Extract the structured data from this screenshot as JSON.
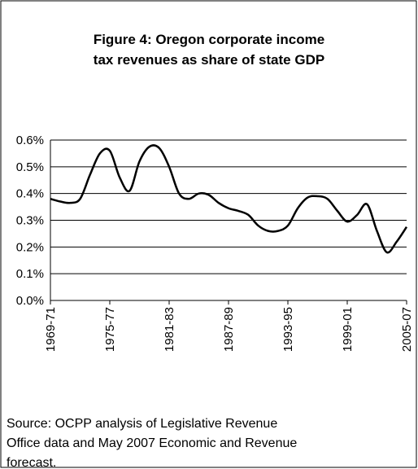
{
  "chart_data": {
    "type": "line",
    "title": [
      "Figure 4: Oregon corporate income",
      "tax revenues as share of state GDP"
    ],
    "categories": [
      "1969-71",
      null,
      null,
      null,
      null,
      null,
      "1975-77",
      null,
      null,
      null,
      null,
      null,
      "1981-83",
      null,
      null,
      null,
      null,
      null,
      "1987-89",
      null,
      null,
      null,
      null,
      null,
      "1993-95",
      null,
      null,
      null,
      null,
      null,
      "1999-01",
      null,
      null,
      null,
      null,
      null,
      "2005-07"
    ],
    "series": [
      {
        "name": "Corporate income tax revenues as share of state GDP",
        "color": "#000000",
        "values": [
          0.38,
          0.37,
          0.365,
          0.38,
          0.47,
          0.55,
          0.56,
          0.46,
          0.41,
          0.52,
          0.575,
          0.57,
          0.5,
          0.4,
          0.38,
          0.4,
          0.395,
          0.365,
          0.345,
          0.335,
          0.32,
          0.28,
          0.26,
          0.26,
          0.28,
          0.345,
          0.385,
          0.39,
          0.38,
          0.335,
          0.295,
          0.32,
          0.36,
          0.26,
          0.18,
          0.22,
          0.275
        ]
      }
    ],
    "ylim": [
      0,
      0.6
    ],
    "yticks": [
      {
        "value": 0,
        "label": "0.0%"
      },
      {
        "value": 0.1,
        "label": "0.1%"
      },
      {
        "value": 0.2,
        "label": "0.2%"
      },
      {
        "value": 0.3,
        "label": "0.3%"
      },
      {
        "value": 0.4,
        "label": "0.4%"
      },
      {
        "value": 0.5,
        "label": "0.5%"
      },
      {
        "value": 0.6,
        "label": "0.6%"
      }
    ],
    "grid": true,
    "source": [
      "Source: OCPP analysis of Legislative Revenue",
      "Office data and May 2007 Economic and Revenue",
      "forecast."
    ]
  }
}
